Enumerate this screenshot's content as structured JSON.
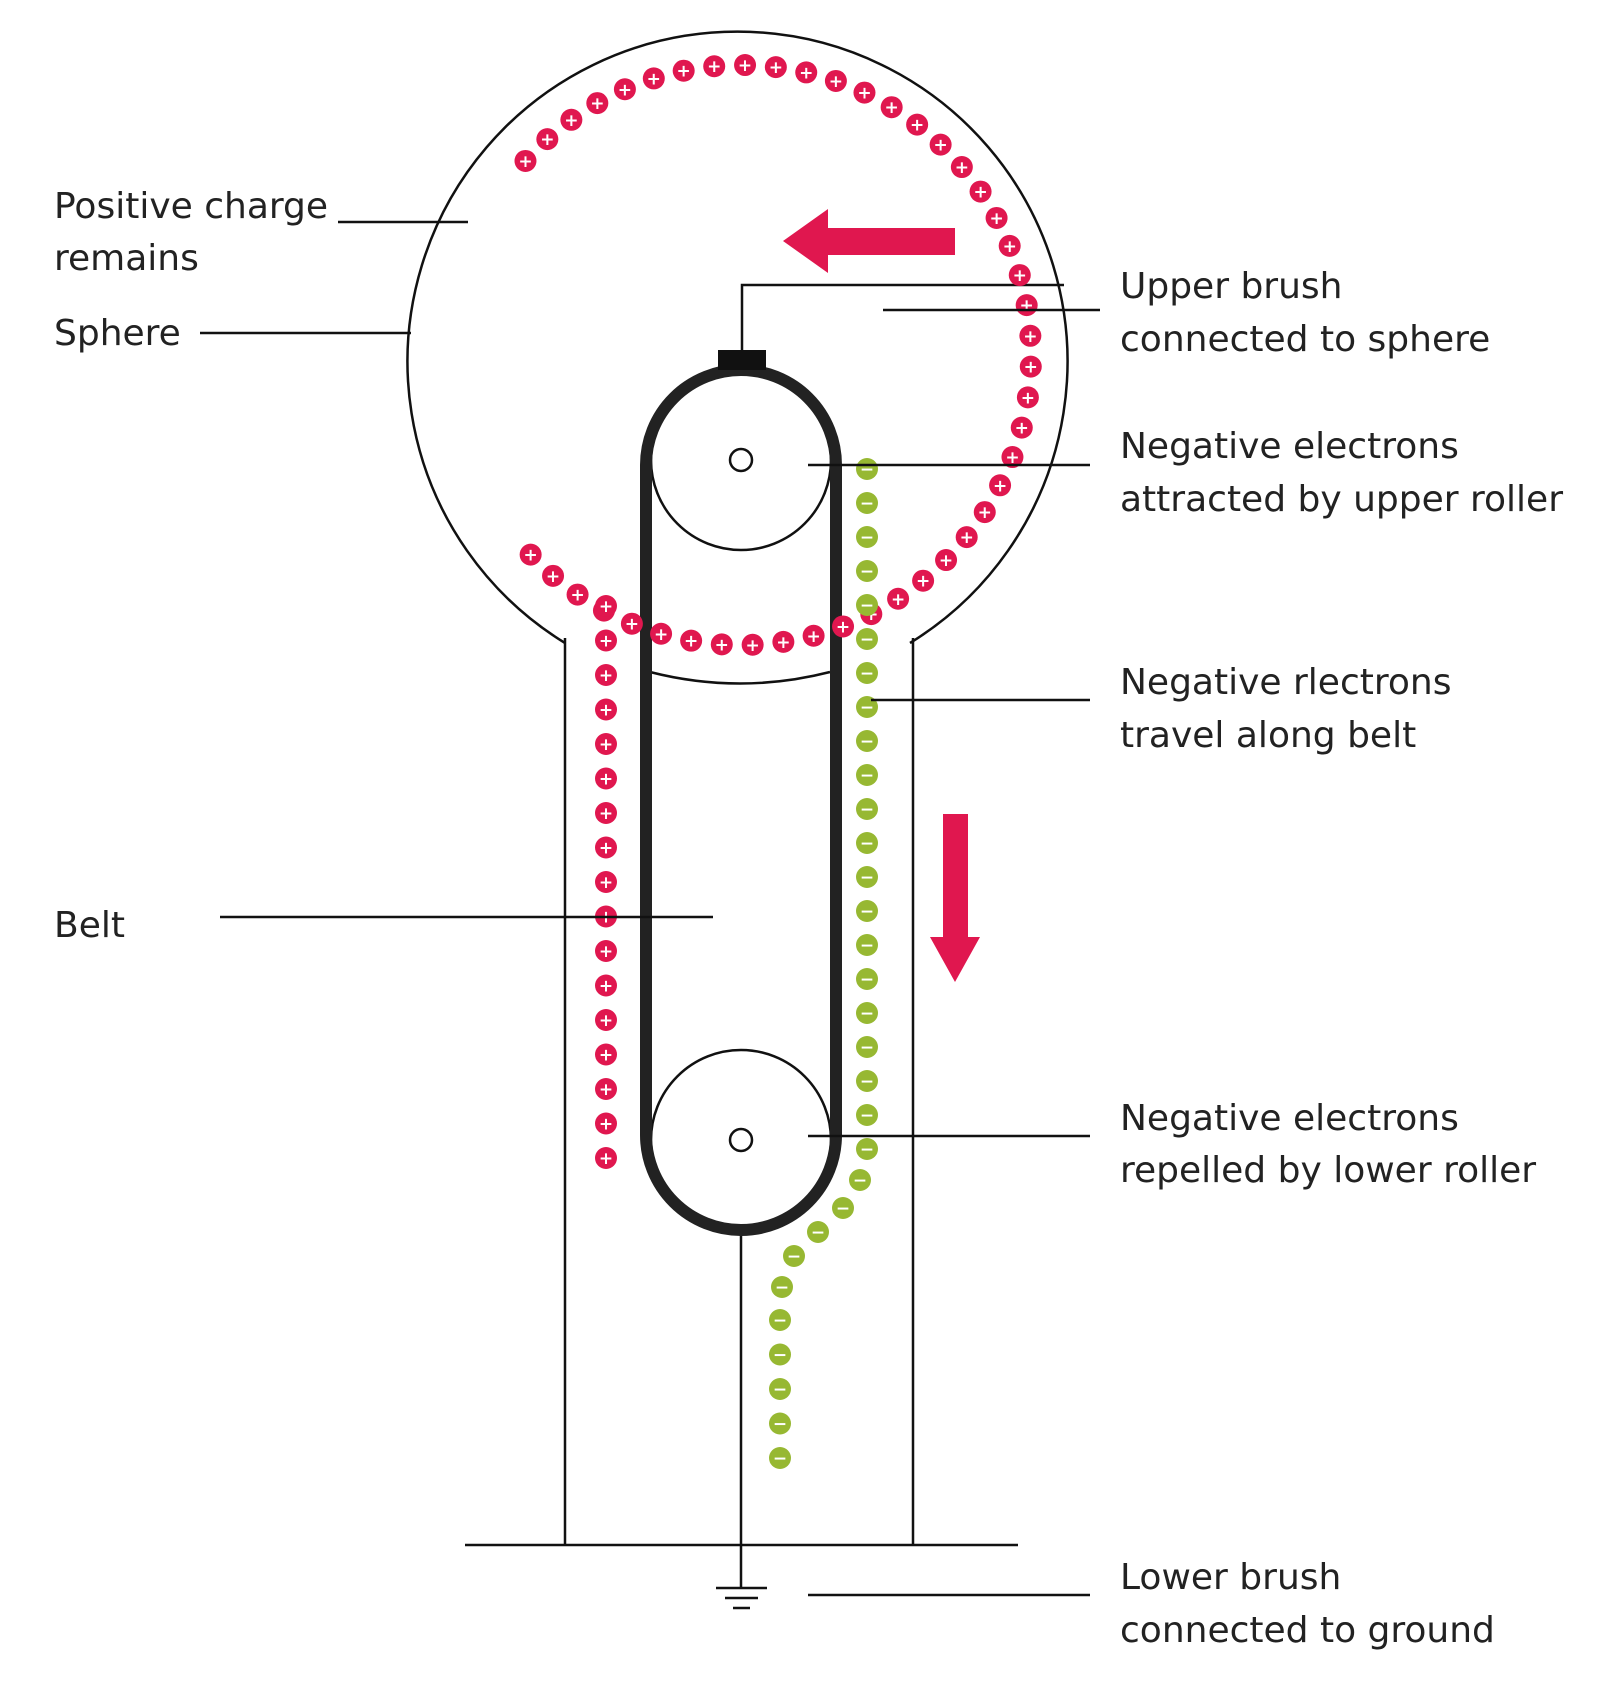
{
  "labels": {
    "positive_charge": [
      "Positive charge",
      "remains"
    ],
    "sphere": [
      "Sphere"
    ],
    "belt": [
      "Belt"
    ],
    "upper_brush": [
      "Upper brush",
      "connected to sphere"
    ],
    "attracted": [
      "Negative electrons",
      "attracted by upper roller"
    ],
    "travel": [
      "Negative rlectrons",
      "travel along belt"
    ],
    "repelled": [
      "Negative electrons",
      "repelled by lower roller"
    ],
    "lower_brush": [
      "Lower brush",
      "connected to ground"
    ]
  },
  "symbols": {
    "positive": "+",
    "negative": "−"
  },
  "colors": {
    "positive": "#e0174f",
    "negative": "#97b832",
    "arrow": "#e0174f",
    "line": "#111111",
    "belt": "#222222"
  }
}
